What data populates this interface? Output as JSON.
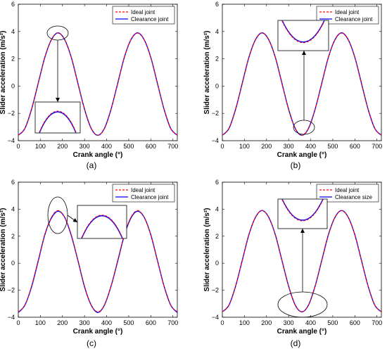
{
  "figure": {
    "panels": [
      "a",
      "b",
      "c",
      "d"
    ]
  },
  "chart_data": [
    {
      "type": "line",
      "panel_label": "(a)",
      "xlabel": "Crank angle (°)",
      "ylabel": "Slider acceleration (m/s²)",
      "xlim": [
        0,
        720
      ],
      "ylim": [
        -4,
        6
      ],
      "xticks": [
        "0",
        "100",
        "200",
        "300",
        "400",
        "500",
        "600",
        "700"
      ],
      "yticks": [
        "-4",
        "-2",
        "0",
        "2",
        "4",
        "6"
      ],
      "legend": {
        "position": "top-right",
        "entries": [
          "Ideal joint",
          "Clearance joint"
        ]
      },
      "series": [
        {
          "name": "Ideal joint",
          "style": "dashed",
          "color": "#ff0000",
          "x": [
            0,
            30,
            60,
            90,
            120,
            150,
            180,
            210,
            240,
            270,
            300,
            330,
            360,
            390,
            420,
            450,
            480,
            510,
            540,
            570,
            600,
            630,
            660,
            690,
            720
          ],
          "y": [
            -3.6,
            -3.1,
            -1.7,
            0.2,
            2.1,
            3.4,
            3.9,
            3.4,
            2.1,
            0.2,
            -1.7,
            -3.1,
            -3.6,
            -3.1,
            -1.7,
            0.2,
            2.1,
            3.4,
            3.9,
            3.4,
            2.1,
            0.2,
            -1.7,
            -3.1,
            -3.6
          ]
        },
        {
          "name": "Clearance joint",
          "style": "solid",
          "color": "#0000ff",
          "x": [
            0,
            30,
            60,
            90,
            120,
            150,
            180,
            210,
            240,
            270,
            300,
            330,
            360,
            390,
            420,
            450,
            480,
            510,
            540,
            570,
            600,
            630,
            660,
            690,
            720
          ],
          "y": [
            -3.6,
            -3.1,
            -1.7,
            0.2,
            2.1,
            3.4,
            3.9,
            3.4,
            2.1,
            0.2,
            -1.7,
            -3.1,
            -3.6,
            -3.1,
            -1.7,
            0.2,
            2.1,
            3.4,
            3.9,
            3.4,
            2.1,
            0.2,
            -1.7,
            -3.1,
            -3.6
          ]
        }
      ],
      "zoom": {
        "center": [
          180,
          3.9
        ],
        "region": "top"
      }
    },
    {
      "type": "line",
      "panel_label": "(b)",
      "xlabel": "Crank angle (°)",
      "ylabel": "Slider acceleration (m/s²)",
      "xlim": [
        0,
        720
      ],
      "ylim": [
        -4,
        6
      ],
      "xticks": [
        "0",
        "100",
        "200",
        "300",
        "400",
        "500",
        "600",
        "700"
      ],
      "yticks": [
        "-4",
        "-2",
        "0",
        "2",
        "4",
        "6"
      ],
      "legend": {
        "position": "top-right",
        "entries": [
          "Ideal joint",
          "Clearance joint"
        ]
      },
      "series": [
        {
          "name": "Ideal joint",
          "style": "dashed",
          "color": "#ff0000",
          "x": [
            0,
            30,
            60,
            90,
            120,
            150,
            180,
            210,
            240,
            270,
            300,
            330,
            360,
            390,
            420,
            450,
            480,
            510,
            540,
            570,
            600,
            630,
            660,
            690,
            720
          ],
          "y": [
            -3.6,
            -3.1,
            -1.7,
            0.2,
            2.1,
            3.4,
            3.9,
            3.4,
            2.1,
            0.2,
            -1.7,
            -3.1,
            -3.6,
            -3.1,
            -1.7,
            0.2,
            2.1,
            3.4,
            3.9,
            3.4,
            2.1,
            0.2,
            -1.7,
            -3.1,
            -3.6
          ]
        },
        {
          "name": "Clearance joint",
          "style": "solid",
          "color": "#0000ff",
          "x": [
            0,
            30,
            60,
            90,
            120,
            150,
            180,
            210,
            240,
            270,
            300,
            330,
            360,
            390,
            420,
            450,
            480,
            510,
            540,
            570,
            600,
            630,
            660,
            690,
            720
          ],
          "y": [
            -3.6,
            -3.1,
            -1.7,
            0.2,
            2.1,
            3.4,
            3.9,
            3.4,
            2.1,
            0.2,
            -1.7,
            -3.1,
            -3.6,
            -3.1,
            -1.7,
            0.2,
            2.1,
            3.4,
            3.9,
            3.4,
            2.1,
            0.2,
            -1.7,
            -3.1,
            -3.6
          ]
        }
      ],
      "zoom": {
        "center": [
          360,
          -3.6
        ],
        "region": "bottom"
      }
    },
    {
      "type": "line",
      "panel_label": "(c)",
      "xlabel": "Crank angle (°)",
      "ylabel": "Slider acceleration (m/s²)",
      "xlim": [
        0,
        720
      ],
      "ylim": [
        -4,
        6
      ],
      "xticks": [
        "0",
        "100",
        "200",
        "300",
        "400",
        "500",
        "600",
        "700"
      ],
      "yticks": [
        "-4",
        "-2",
        "0",
        "2",
        "4",
        "6"
      ],
      "legend": {
        "position": "top-right",
        "entries": [
          "Ideal joint",
          "Clearance joint"
        ]
      },
      "series": [
        {
          "name": "Ideal joint",
          "style": "dashed",
          "color": "#ff0000",
          "x": [
            0,
            30,
            60,
            90,
            120,
            150,
            180,
            210,
            240,
            270,
            300,
            330,
            360,
            390,
            420,
            450,
            480,
            510,
            540,
            570,
            600,
            630,
            660,
            690,
            720
          ],
          "y": [
            -3.6,
            -3.1,
            -1.7,
            0.2,
            2.1,
            3.4,
            3.9,
            3.4,
            2.1,
            0.2,
            -1.7,
            -3.1,
            -3.6,
            -3.1,
            -1.7,
            0.2,
            2.1,
            3.4,
            3.9,
            3.4,
            2.1,
            0.2,
            -1.7,
            -3.1,
            -3.6
          ]
        },
        {
          "name": "Clearance joint",
          "style": "solid",
          "color": "#0000ff",
          "x": [
            0,
            30,
            60,
            90,
            120,
            150,
            180,
            210,
            240,
            270,
            300,
            330,
            360,
            390,
            420,
            450,
            480,
            510,
            540,
            570,
            600,
            630,
            660,
            690,
            720
          ],
          "y": [
            -3.65,
            -3.1,
            -1.75,
            0.15,
            2.1,
            3.35,
            3.85,
            3.4,
            2.05,
            0.2,
            -1.75,
            -3.1,
            -3.65,
            -3.1,
            -1.7,
            0.15,
            2.05,
            3.35,
            3.85,
            3.4,
            2.1,
            0.2,
            -1.7,
            -3.1,
            -3.65
          ]
        }
      ],
      "zoom": {
        "center": [
          180,
          3.9
        ],
        "region": "top"
      }
    },
    {
      "type": "line",
      "panel_label": "(d)",
      "xlabel": "Crank angle (°)",
      "ylabel": "Slider acceleration (m/s²)",
      "xlim": [
        0,
        720
      ],
      "ylim": [
        -4,
        6
      ],
      "xticks": [
        "0",
        "100",
        "200",
        "300",
        "400",
        "500",
        "600",
        "700"
      ],
      "yticks": [
        "-4",
        "-2",
        "0",
        "2",
        "4",
        "6"
      ],
      "legend": {
        "position": "top-right",
        "entries": [
          "Ideal joint",
          "Clearance size"
        ]
      },
      "series": [
        {
          "name": "Ideal joint",
          "style": "dashed",
          "color": "#ff0000",
          "x": [
            0,
            30,
            60,
            90,
            120,
            150,
            180,
            210,
            240,
            270,
            300,
            330,
            360,
            390,
            420,
            450,
            480,
            510,
            540,
            570,
            600,
            630,
            660,
            690,
            720
          ],
          "y": [
            -3.6,
            -3.1,
            -1.7,
            0.2,
            2.1,
            3.4,
            3.9,
            3.4,
            2.1,
            0.2,
            -1.7,
            -3.1,
            -3.6,
            -3.1,
            -1.7,
            0.2,
            2.1,
            3.4,
            3.9,
            3.4,
            2.1,
            0.2,
            -1.7,
            -3.1,
            -3.6
          ]
        },
        {
          "name": "Clearance size",
          "style": "solid",
          "color": "#0000ff",
          "x": [
            0,
            30,
            60,
            90,
            120,
            150,
            180,
            210,
            240,
            270,
            300,
            330,
            360,
            390,
            420,
            450,
            480,
            510,
            540,
            570,
            600,
            630,
            660,
            690,
            720
          ],
          "y": [
            -3.6,
            -3.1,
            -1.7,
            0.2,
            2.1,
            3.4,
            3.9,
            3.4,
            2.1,
            0.2,
            -1.7,
            -3.1,
            -3.6,
            -3.1,
            -1.7,
            0.2,
            2.1,
            3.4,
            3.9,
            3.4,
            2.1,
            0.2,
            -1.7,
            -3.1,
            -3.6
          ]
        }
      ],
      "zoom": {
        "center": [
          360,
          -3.6
        ],
        "region": "bottom"
      }
    }
  ]
}
